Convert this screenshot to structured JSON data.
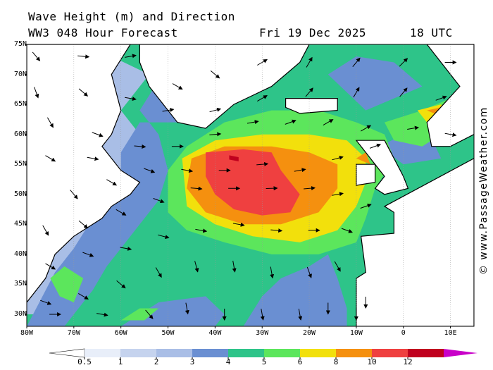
{
  "header": {
    "title_line1": "Wave Height (m) and Direction",
    "title_line2": "WW3 048 Hour Forecast",
    "date": "Fri 19 Dec 2025",
    "time": "18 UTC"
  },
  "credit": "© www.PassageWeather.com",
  "map": {
    "lat_labels": [
      "75N",
      "70N",
      "65N",
      "60N",
      "55N",
      "50N",
      "45N",
      "40N",
      "35N",
      "30N"
    ],
    "lon_labels": [
      "80W",
      "70W",
      "60W",
      "50W",
      "40W",
      "30W",
      "20W",
      "10W",
      "0",
      "10E"
    ],
    "lat_range": [
      28,
      75
    ],
    "lon_range": [
      -80,
      15
    ],
    "land_color": "#ffffff",
    "ocean_base_color": "#2ec489",
    "arrow_color": "#000000",
    "wave_zones": [
      {
        "level": "1-2",
        "color": "#a9bee6",
        "polys": [
          [
            [
              -80,
              30
            ],
            [
              -74,
              30
            ],
            [
              -72,
              36
            ],
            [
              -68,
              40
            ],
            [
              -62,
              44
            ],
            [
              -58,
              47
            ],
            [
              -54,
              51
            ],
            [
              -52,
              55
            ],
            [
              -56,
              60
            ],
            [
              -60,
              64
            ],
            [
              -58,
              66
            ],
            [
              -54,
              70
            ],
            [
              -62,
              73
            ],
            [
              -66,
              72
            ],
            [
              -70,
              75
            ],
            [
              -80,
              75
            ]
          ]
        ]
      },
      {
        "level": "2-3",
        "color": "#6a8fd2",
        "polys": [
          [
            [
              -72,
              28
            ],
            [
              -66,
              34
            ],
            [
              -63,
              38
            ],
            [
              -60,
              41
            ],
            [
              -56,
              45
            ],
            [
              -52,
              49
            ],
            [
              -50,
              54
            ],
            [
              -52,
              60
            ],
            [
              -56,
              64
            ],
            [
              -52,
              69
            ],
            [
              -44,
              72
            ],
            [
              -38,
              70
            ],
            [
              -36,
              66
            ],
            [
              -44,
              62
            ],
            [
              -56,
              62
            ],
            [
              -60,
              57
            ],
            [
              -60,
              52
            ],
            [
              -66,
              46
            ],
            [
              -70,
              41
            ],
            [
              -74,
              37
            ],
            [
              -78,
              31
            ],
            [
              -80,
              28
            ]
          ],
          [
            [
              -34,
              28
            ],
            [
              -30,
              33
            ],
            [
              -26,
              36
            ],
            [
              -20,
              38
            ],
            [
              -16,
              40
            ],
            [
              -14,
              36
            ],
            [
              -12,
              31
            ],
            [
              -12,
              28
            ]
          ],
          [
            [
              -60,
              28
            ],
            [
              -52,
              32
            ],
            [
              -42,
              33
            ],
            [
              -38,
              30
            ],
            [
              -40,
              28
            ]
          ],
          [
            [
              -8,
              64
            ],
            [
              -2,
              66
            ],
            [
              4,
              68
            ],
            [
              -2,
              72
            ],
            [
              -10,
              73
            ],
            [
              -16,
              70
            ]
          ],
          [
            [
              -5,
              58
            ],
            [
              0,
              60
            ],
            [
              5,
              61
            ],
            [
              8,
              56
            ],
            [
              0,
              55
            ]
          ]
        ]
      },
      {
        "level": "4-5",
        "color": "#5ce65c",
        "polys": [
          [
            [
              -50,
              54
            ],
            [
              -46,
              58
            ],
            [
              -38,
              62
            ],
            [
              -28,
              64
            ],
            [
              -18,
              64
            ],
            [
              -10,
              62
            ],
            [
              -4,
              60
            ],
            [
              -2,
              56
            ],
            [
              -6,
              51
            ],
            [
              -8,
              46
            ],
            [
              -10,
              42
            ],
            [
              -18,
              40
            ],
            [
              -28,
              40
            ],
            [
              -38,
              42
            ],
            [
              -46,
              44
            ],
            [
              -50,
              47
            ]
          ],
          [
            [
              -72,
              38
            ],
            [
              -68,
              36
            ],
            [
              -70,
              32
            ],
            [
              -73,
              33
            ],
            [
              -75,
              36
            ]
          ],
          [
            [
              -4,
              62
            ],
            [
              4,
              64
            ],
            [
              10,
              66
            ],
            [
              8,
              60
            ],
            [
              4,
              58
            ],
            [
              -2,
              59
            ]
          ],
          [
            [
              -60,
              29
            ],
            [
              -56,
              31
            ],
            [
              -52,
              31
            ],
            [
              -55,
              29
            ]
          ]
        ]
      },
      {
        "level": "5-6",
        "color": "#f2e00c",
        "polys": [
          [
            [
              -47,
              56
            ],
            [
              -40,
              59
            ],
            [
              -30,
              60
            ],
            [
              -20,
              60
            ],
            [
              -12,
              59
            ],
            [
              -8,
              56
            ],
            [
              -8,
              52
            ],
            [
              -10,
              48
            ],
            [
              -14,
              44
            ],
            [
              -22,
              42
            ],
            [
              -32,
              43
            ],
            [
              -40,
              45
            ],
            [
              -46,
              48
            ]
          ],
          [
            [
              3,
              64
            ],
            [
              8,
              65
            ],
            [
              10,
              63
            ],
            [
              5,
              62
            ]
          ]
        ]
      },
      {
        "level": "6-8",
        "color": "#f5900f",
        "polys": [
          [
            [
              -45,
              56
            ],
            [
              -38,
              58
            ],
            [
              -28,
              58
            ],
            [
              -20,
              57
            ],
            [
              -14,
              55
            ],
            [
              -14,
              51
            ],
            [
              -18,
              47
            ],
            [
              -26,
              45
            ],
            [
              -34,
              45
            ],
            [
              -42,
              47
            ],
            [
              -46,
              51
            ]
          ],
          [
            [
              -10,
              56
            ],
            [
              -8,
              57
            ],
            [
              -7,
              55
            ]
          ],
          [
            [
              5,
              64
            ],
            [
              8,
              64.5
            ],
            [
              8,
              63
            ]
          ]
        ]
      },
      {
        "level": "8-10",
        "color": "#ef4040",
        "polys": [
          [
            [
              -42,
              57
            ],
            [
              -34,
              57.5
            ],
            [
              -28,
              57
            ],
            [
              -26,
              54
            ],
            [
              -22,
              50
            ],
            [
              -24,
              47
            ],
            [
              -30,
              46.5
            ],
            [
              -36,
              47.5
            ],
            [
              -40,
              50
            ],
            [
              -42,
              53
            ]
          ]
        ]
      },
      {
        "level": "10-12",
        "color": "#c0001e",
        "polys": [
          [
            [
              -37,
              56.5
            ],
            [
              -35,
              56.2
            ],
            [
              -35,
              55.5
            ],
            [
              -37,
              55.8
            ]
          ]
        ]
      }
    ],
    "land_polys": [
      [
        [
          -80,
          75
        ],
        [
          -58,
          75
        ],
        [
          -62,
          70
        ],
        [
          -60,
          64
        ],
        [
          -62,
          60
        ],
        [
          -64,
          58
        ],
        [
          -60,
          54
        ],
        [
          -56,
          52
        ],
        [
          -58,
          50
        ],
        [
          -62,
          48
        ],
        [
          -64,
          46
        ],
        [
          -68,
          44
        ],
        [
          -70,
          43
        ],
        [
          -74,
          40
        ],
        [
          -76,
          36
        ],
        [
          -80,
          32
        ]
      ],
      [
        [
          -56,
          75
        ],
        [
          -20,
          75
        ],
        [
          -22,
          72
        ],
        [
          -28,
          68
        ],
        [
          -36,
          65
        ],
        [
          -42,
          61
        ],
        [
          -48,
          62
        ],
        [
          -54,
          68
        ],
        [
          -56,
          72
        ]
      ],
      [
        [
          -25,
          66
        ],
        [
          -14,
          66
        ],
        [
          -14,
          64
        ],
        [
          -22,
          63.5
        ],
        [
          -25,
          64.5
        ]
      ],
      [
        [
          -10,
          59
        ],
        [
          -4,
          59
        ],
        [
          -2,
          56
        ],
        [
          0,
          53
        ],
        [
          1,
          51
        ],
        [
          -4,
          50
        ],
        [
          -6,
          51
        ],
        [
          -4,
          53
        ],
        [
          -6,
          55
        ],
        [
          -8,
          57
        ]
      ],
      [
        [
          -10,
          55
        ],
        [
          -6,
          55
        ],
        [
          -6,
          52
        ],
        [
          -10,
          51.5
        ]
      ],
      [
        [
          5,
          75
        ],
        [
          15,
          75
        ],
        [
          15,
          60
        ],
        [
          10,
          58
        ],
        [
          6,
          58
        ],
        [
          5,
          62
        ],
        [
          12,
          68
        ]
      ],
      [
        [
          -4,
          48
        ],
        [
          15,
          56
        ],
        [
          15,
          28
        ],
        [
          -10,
          28
        ],
        [
          -10,
          36
        ],
        [
          -8,
          37
        ],
        [
          -9,
          43
        ],
        [
          -2,
          43.5
        ],
        [
          -2,
          47
        ]
      ]
    ],
    "arrows": [
      [
        -78,
        73,
        140
      ],
      [
        -68,
        73,
        95
      ],
      [
        -58,
        73,
        80
      ],
      [
        -78,
        67,
        160
      ],
      [
        -68,
        67,
        130
      ],
      [
        -58,
        66,
        100
      ],
      [
        -48,
        68,
        120
      ],
      [
        -40,
        70,
        130
      ],
      [
        -30,
        72,
        60
      ],
      [
        -20,
        72,
        30
      ],
      [
        -10,
        72,
        40
      ],
      [
        0,
        72,
        45
      ],
      [
        10,
        72,
        90
      ],
      [
        -75,
        62,
        150
      ],
      [
        -65,
        60,
        110
      ],
      [
        -50,
        64,
        80
      ],
      [
        -40,
        64,
        75
      ],
      [
        -30,
        66,
        60
      ],
      [
        -20,
        67,
        40
      ],
      [
        -10,
        67,
        30
      ],
      [
        0,
        67,
        40
      ],
      [
        8,
        66,
        70
      ],
      [
        -75,
        56,
        120
      ],
      [
        -66,
        56,
        100
      ],
      [
        -56,
        58,
        95
      ],
      [
        -48,
        58,
        90
      ],
      [
        -40,
        60,
        85
      ],
      [
        -32,
        62,
        80
      ],
      [
        -24,
        62,
        70
      ],
      [
        -16,
        62,
        60
      ],
      [
        -8,
        61,
        60
      ],
      [
        2,
        61,
        80
      ],
      [
        10,
        60,
        100
      ],
      [
        -70,
        50,
        140
      ],
      [
        -62,
        52,
        120
      ],
      [
        -54,
        54,
        110
      ],
      [
        -46,
        54,
        100
      ],
      [
        -38,
        54,
        90
      ],
      [
        -30,
        55,
        85
      ],
      [
        -22,
        54,
        80
      ],
      [
        -14,
        56,
        75
      ],
      [
        -6,
        58,
        70
      ],
      [
        -76,
        44,
        150
      ],
      [
        -68,
        45,
        130
      ],
      [
        -60,
        47,
        120
      ],
      [
        -52,
        49,
        110
      ],
      [
        -44,
        51,
        95
      ],
      [
        -36,
        51,
        90
      ],
      [
        -28,
        51,
        88
      ],
      [
        -20,
        51,
        85
      ],
      [
        -14,
        50,
        80
      ],
      [
        -8,
        48,
        70
      ],
      [
        -75,
        38,
        120
      ],
      [
        -67,
        40,
        110
      ],
      [
        -59,
        41,
        100
      ],
      [
        -51,
        43,
        105
      ],
      [
        -43,
        44,
        100
      ],
      [
        -35,
        45,
        100
      ],
      [
        -27,
        44,
        95
      ],
      [
        -19,
        44,
        90
      ],
      [
        -12,
        44,
        110
      ],
      [
        -76,
        32,
        110
      ],
      [
        -68,
        33,
        120
      ],
      [
        -60,
        35,
        130
      ],
      [
        -52,
        37,
        150
      ],
      [
        -44,
        38,
        165
      ],
      [
        -36,
        38,
        170
      ],
      [
        -28,
        37,
        170
      ],
      [
        -20,
        37,
        160
      ],
      [
        -14,
        38,
        150
      ],
      [
        -8,
        32,
        180
      ],
      [
        -74,
        30,
        90
      ],
      [
        -64,
        30,
        100
      ],
      [
        -54,
        30,
        140
      ],
      [
        -46,
        31,
        170
      ],
      [
        -38,
        30,
        180
      ],
      [
        -30,
        30,
        170
      ],
      [
        -22,
        30,
        170
      ],
      [
        -16,
        31,
        180
      ],
      [
        -10,
        30,
        180
      ]
    ]
  },
  "colorbar": {
    "labels": [
      "0.5",
      "1",
      "2",
      "3",
      "4",
      "5",
      "6",
      "8",
      "10",
      "12"
    ],
    "colors": [
      "#e8eef9",
      "#c5d3ee",
      "#a9bee6",
      "#6a8fd2",
      "#2ec489",
      "#5ce65c",
      "#f2e00c",
      "#f5900f",
      "#ef4040",
      "#c0001e"
    ],
    "arrow_left_color": "#ffffff",
    "arrow_right_color": "#c800c8"
  }
}
